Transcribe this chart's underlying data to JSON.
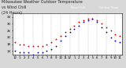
{
  "title_line1": "Milwaukee Weather Outdoor Temperature",
  "title_line2": "vs Wind Chill",
  "title_line3": "(24 Hours)",
  "title_fontsize": 3.5,
  "background_color": "#d8d8d8",
  "plot_bg_color": "#ffffff",
  "temp_color": "#cc0000",
  "windchill_color": "#0000cc",
  "marker_size": 1.8,
  "ylim": [
    12,
    36
  ],
  "yticks": [
    14,
    18,
    22,
    26,
    30,
    34
  ],
  "xlabel_fontsize": 2.8,
  "ylabel_fontsize": 2.8,
  "hours": [
    0,
    1,
    2,
    3,
    4,
    5,
    6,
    7,
    8,
    9,
    10,
    11,
    12,
    13,
    14,
    15,
    16,
    17,
    18,
    19,
    20,
    21,
    22,
    23
  ],
  "temp": [
    19,
    18,
    18,
    17,
    17,
    17,
    17,
    18,
    19,
    21,
    23,
    25,
    27,
    29,
    31,
    32,
    33,
    33,
    32,
    30,
    28,
    26,
    24,
    23
  ],
  "windchill": [
    14,
    13,
    13,
    13,
    12,
    13,
    13,
    14,
    15,
    17,
    20,
    23,
    25,
    27,
    29,
    31,
    32,
    33,
    31,
    28,
    25,
    22,
    20,
    19
  ],
  "xlabels": [
    "12",
    "1",
    "2",
    "3",
    "4",
    "5",
    "6",
    "7",
    "8",
    "9",
    "10",
    "11",
    "12",
    "1",
    "2",
    "3",
    "4",
    "5",
    "6",
    "7",
    "8",
    "9",
    "10",
    "11"
  ],
  "grid_positions": [
    0,
    2,
    4,
    6,
    8,
    10,
    12,
    14,
    16,
    18,
    20,
    22
  ],
  "legend_temp_label": "Outdoor Temp",
  "legend_wc_label": "Wind Chill",
  "legend_fontsize": 2.5
}
